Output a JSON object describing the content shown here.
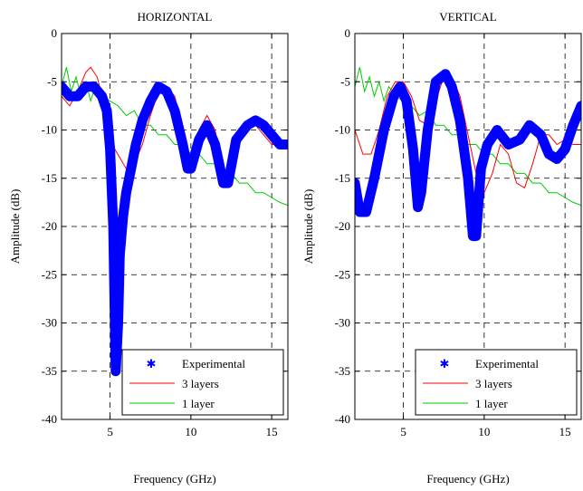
{
  "chart_data": [
    {
      "type": "line",
      "title": "HORIZONTAL",
      "xlabel": "Frequency (GHz)",
      "ylabel": "Amplitude (dB)",
      "xlim": [
        2,
        16
      ],
      "ylim": [
        -40,
        0
      ],
      "xticks": [
        5,
        10,
        15
      ],
      "yticks": [
        0,
        -5,
        -10,
        -15,
        -20,
        -25,
        -30,
        -35,
        -40
      ],
      "grid": true,
      "legend_position": "bottom-right",
      "colors": {
        "Experimental": "#0000ff",
        "3 layers": "#ff0000",
        "1 layer": "#00cc00"
      },
      "series": [
        {
          "name": "Experimental",
          "marker": "asterisk",
          "x": [
            2.0,
            2.5,
            3.0,
            3.5,
            4.0,
            4.5,
            4.8,
            5.0,
            5.2,
            5.35,
            5.5,
            5.6,
            5.8,
            6.0,
            6.3,
            6.6,
            7.0,
            7.5,
            8.0,
            8.5,
            9.0,
            9.5,
            9.8,
            10.0,
            10.5,
            11.0,
            11.5,
            12.0,
            12.3,
            12.8,
            13.5,
            14.0,
            14.5,
            15.0,
            15.5,
            16.0
          ],
          "y": [
            -5.5,
            -6.5,
            -6.5,
            -5.5,
            -5.5,
            -6.5,
            -8,
            -12,
            -20,
            -35,
            -30,
            -23,
            -19,
            -16.5,
            -14,
            -11.5,
            -9,
            -7,
            -5.5,
            -6,
            -8,
            -11.5,
            -14,
            -14,
            -11,
            -9.5,
            -11.5,
            -15.5,
            -15.5,
            -11,
            -9.5,
            -9,
            -9.5,
            -10.5,
            -11.5,
            -11.5
          ]
        },
        {
          "name": "3 layers",
          "x": [
            2.0,
            2.5,
            3.0,
            3.5,
            3.8,
            4.2,
            4.8,
            5.3,
            6.0,
            6.5,
            7.0,
            7.5,
            8.0,
            8.5,
            9.0,
            9.5,
            9.8,
            10.0,
            10.5,
            11.0,
            11.5,
            12.0,
            12.3,
            12.8,
            13.5,
            14.0,
            14.5,
            15.0,
            15.5,
            16.0
          ],
          "y": [
            -6.5,
            -7.5,
            -6,
            -4,
            -3.5,
            -4.5,
            -8.5,
            -12,
            -14,
            -13.5,
            -11.5,
            -8.5,
            -6,
            -5.5,
            -6.5,
            -10,
            -14,
            -14,
            -10,
            -8.5,
            -10,
            -15,
            -15.5,
            -12,
            -9.5,
            -9.5,
            -10.5,
            -11.5,
            -11.5,
            -11.5
          ]
        },
        {
          "name": "1 layer",
          "x": [
            2.0,
            2.3,
            2.6,
            2.9,
            3.2,
            3.5,
            3.8,
            4.1,
            4.5,
            5.0,
            5.5,
            6.0,
            6.5,
            7.0,
            7.5,
            8.0,
            8.5,
            9.0,
            9.5,
            10.0,
            10.5,
            11.0,
            11.5,
            12.0,
            12.5,
            13.0,
            13.5,
            14.0,
            14.5,
            15.0,
            15.5,
            16.0
          ],
          "y": [
            -5.5,
            -3.5,
            -6,
            -4.5,
            -6.5,
            -5,
            -7,
            -5.5,
            -6.5,
            -7,
            -7.5,
            -8.5,
            -8,
            -9.5,
            -9.5,
            -10.5,
            -10.5,
            -11.5,
            -11.5,
            -12.5,
            -12.5,
            -13.5,
            -13.5,
            -14.5,
            -14.5,
            -15.5,
            -15.5,
            -16.5,
            -16.5,
            -17,
            -17.5,
            -17.8
          ]
        }
      ]
    },
    {
      "type": "line",
      "title": "VERTICAL",
      "xlabel": "Frequency (GHz)",
      "ylabel": "Amplitude (dB)",
      "xlim": [
        2,
        16
      ],
      "ylim": [
        -40,
        0
      ],
      "xticks": [
        5,
        10,
        15
      ],
      "yticks": [
        0,
        -5,
        -10,
        -15,
        -20,
        -25,
        -30,
        -35,
        -40
      ],
      "grid": true,
      "legend_position": "bottom-right",
      "colors": {
        "Experimental": "#0000ff",
        "3 layers": "#ff0000",
        "1 layer": "#00cc00"
      },
      "series": [
        {
          "name": "Experimental",
          "marker": "asterisk",
          "x": [
            2.0,
            2.3,
            2.7,
            3.2,
            3.8,
            4.4,
            4.8,
            5.2,
            5.6,
            5.9,
            6.1,
            6.5,
            7.0,
            7.6,
            8.0,
            8.5,
            9.0,
            9.3,
            9.5,
            9.8,
            10.2,
            10.8,
            11.5,
            12.2,
            12.8,
            13.5,
            14.0,
            14.5,
            15.0,
            15.5,
            16.0
          ],
          "y": [
            -15.5,
            -18.5,
            -18.5,
            -15,
            -10,
            -6.5,
            -5.5,
            -7,
            -12,
            -18,
            -16.5,
            -10,
            -5,
            -4.2,
            -5.5,
            -9,
            -15,
            -21,
            -21,
            -14,
            -11.5,
            -10,
            -11.5,
            -11,
            -9.5,
            -10.5,
            -12.5,
            -13,
            -12,
            -9.5,
            -7.5
          ]
        },
        {
          "name": "3 layers",
          "x": [
            2.0,
            2.5,
            3.0,
            3.5,
            4.0,
            4.5,
            5.0,
            5.5,
            6.0,
            6.5,
            7.0,
            7.5,
            8.0,
            8.5,
            9.0,
            9.5,
            10.0,
            10.5,
            11.0,
            11.5,
            12.0,
            12.5,
            13.0,
            13.5,
            14.0,
            14.5,
            15.0,
            15.5,
            16.0
          ],
          "y": [
            -10,
            -12.5,
            -12.5,
            -10,
            -6.5,
            -5,
            -5,
            -6.5,
            -9,
            -9.5,
            -7,
            -4.5,
            -4.5,
            -6.5,
            -10.5,
            -14.5,
            -16.5,
            -14.5,
            -11.5,
            -12.5,
            -15.5,
            -16,
            -13.5,
            -10.5,
            -10.5,
            -11.5,
            -11,
            -11.5,
            -11.5
          ]
        },
        {
          "name": "1 layer",
          "x": [
            2.0,
            2.3,
            2.6,
            2.9,
            3.2,
            3.5,
            3.8,
            4.1,
            4.5,
            5.0,
            5.5,
            6.0,
            6.5,
            7.0,
            7.5,
            8.0,
            8.5,
            9.0,
            9.5,
            10.0,
            10.5,
            11.0,
            11.5,
            12.0,
            12.5,
            13.0,
            13.5,
            14.0,
            14.5,
            15.0,
            15.5,
            16.0
          ],
          "y": [
            -5.5,
            -3.5,
            -6,
            -4.5,
            -6.5,
            -5,
            -7,
            -5.5,
            -6.5,
            -7,
            -7.5,
            -8.5,
            -8,
            -9.5,
            -9.5,
            -10.5,
            -10.5,
            -11.5,
            -11.5,
            -12.5,
            -12.5,
            -13.5,
            -13.5,
            -14.5,
            -14.5,
            -15.5,
            -15.5,
            -16.5,
            -16.5,
            -17,
            -17.5,
            -17.8
          ]
        }
      ]
    }
  ]
}
